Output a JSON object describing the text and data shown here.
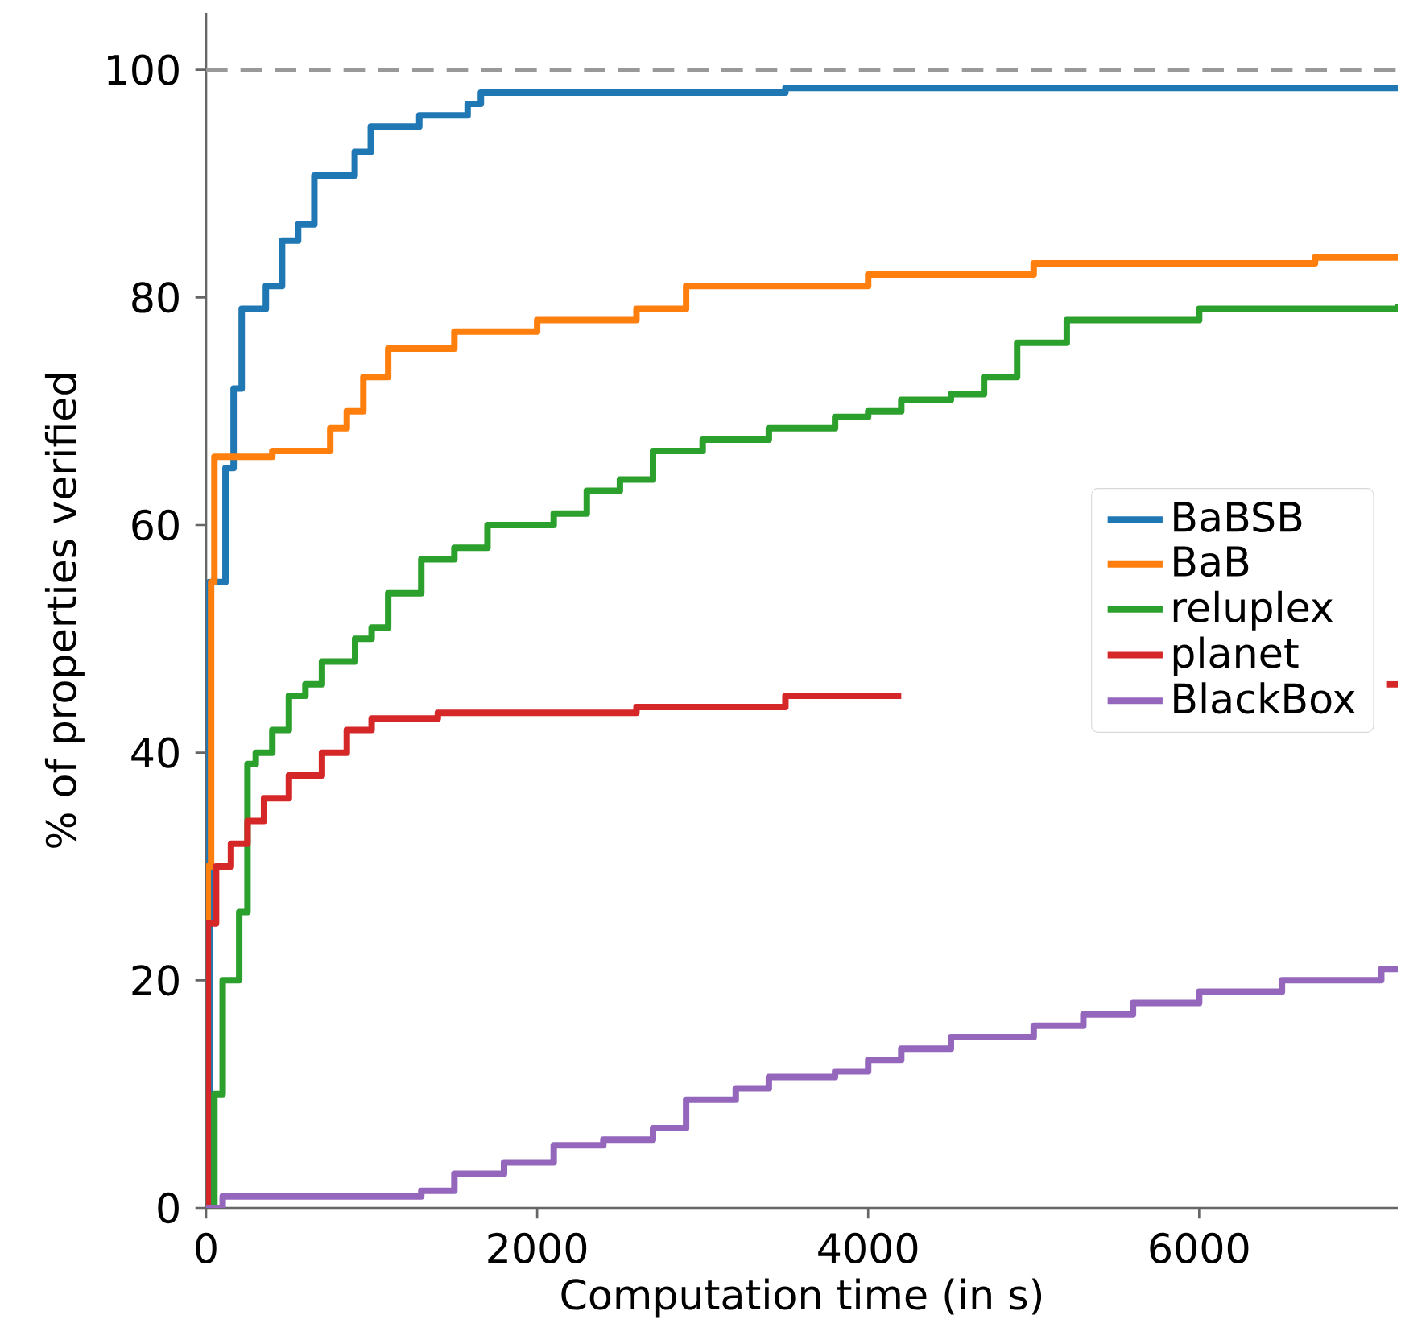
{
  "chart_data": {
    "type": "step",
    "xlabel": "Computation time (in s)",
    "ylabel": "% of properties verified",
    "xlim": [
      0,
      7200
    ],
    "ylim": [
      0,
      105
    ],
    "xticks": [
      0,
      2000,
      4000,
      6000
    ],
    "yticks": [
      0,
      20,
      40,
      60,
      80,
      100
    ],
    "legend": "right",
    "line_style": "solid",
    "ref_lines": [
      {
        "axis": "y",
        "value": 100,
        "color": "#999999",
        "line_style": "dashed"
      }
    ],
    "series": [
      {
        "name": "BaBSB",
        "color": "#1f77b4",
        "x": [
          0,
          20,
          117,
          166,
          215,
          361,
          459,
          556,
          654,
          898,
          995,
          1288,
          1580,
          1660,
          3500,
          7200
        ],
        "values": [
          0,
          55,
          65,
          72,
          79,
          81,
          85,
          86.4,
          90.7,
          92.8,
          95,
          96,
          97,
          98,
          98.4,
          98.4
        ]
      },
      {
        "name": "BaB",
        "color": "#ff7f0e",
        "x": [
          0,
          10,
          30,
          50,
          400,
          750,
          850,
          950,
          1100,
          1500,
          2000,
          2600,
          2900,
          4000,
          5000,
          6700,
          7200
        ],
        "values": [
          0,
          30,
          55,
          66,
          66.5,
          68.5,
          70,
          73,
          75.5,
          77,
          78,
          79,
          81,
          82,
          83,
          83.5,
          83.5
        ]
      },
      {
        "name": "reluplex",
        "color": "#2ca02c",
        "x": [
          0,
          50,
          100,
          200,
          250,
          300,
          400,
          500,
          600,
          700,
          900,
          1000,
          1100,
          1300,
          1500,
          1700,
          2100,
          2300,
          2500,
          2700,
          3000,
          3400,
          3800,
          4000,
          4200,
          4500,
          4700,
          4900,
          5200,
          6000,
          7200
        ],
        "values": [
          0,
          10,
          20,
          26,
          39,
          40,
          42,
          45,
          46,
          48,
          50,
          51,
          54,
          57,
          58,
          60,
          61,
          63,
          64,
          66.5,
          67.5,
          68.5,
          69.5,
          70,
          71,
          71.5,
          73,
          76,
          78,
          79,
          79.4
        ]
      },
      {
        "name": "planet",
        "color": "#d62728",
        "x": [
          0,
          10,
          60,
          150,
          250,
          350,
          500,
          700,
          850,
          1000,
          1400,
          2600,
          3500,
          4200,
          4250,
          7130,
          7200
        ],
        "values": [
          0,
          25,
          30,
          32,
          34,
          36,
          38,
          40,
          42,
          43,
          43.5,
          44,
          45,
          45,
          null,
          46,
          46
        ]
      },
      {
        "name": "BlackBox",
        "color": "#9467bd",
        "x": [
          0,
          100,
          1300,
          1500,
          1800,
          2100,
          2400,
          2700,
          2900,
          3200,
          3400,
          3800,
          4000,
          4200,
          4500,
          5000,
          5300,
          5600,
          6000,
          6500,
          7100,
          7200
        ],
        "values": [
          0,
          1,
          1.5,
          3,
          4,
          5.5,
          6,
          7,
          9.5,
          10.5,
          11.5,
          12,
          13,
          14,
          15,
          16,
          17,
          18,
          19,
          20,
          21,
          21
        ]
      }
    ]
  }
}
